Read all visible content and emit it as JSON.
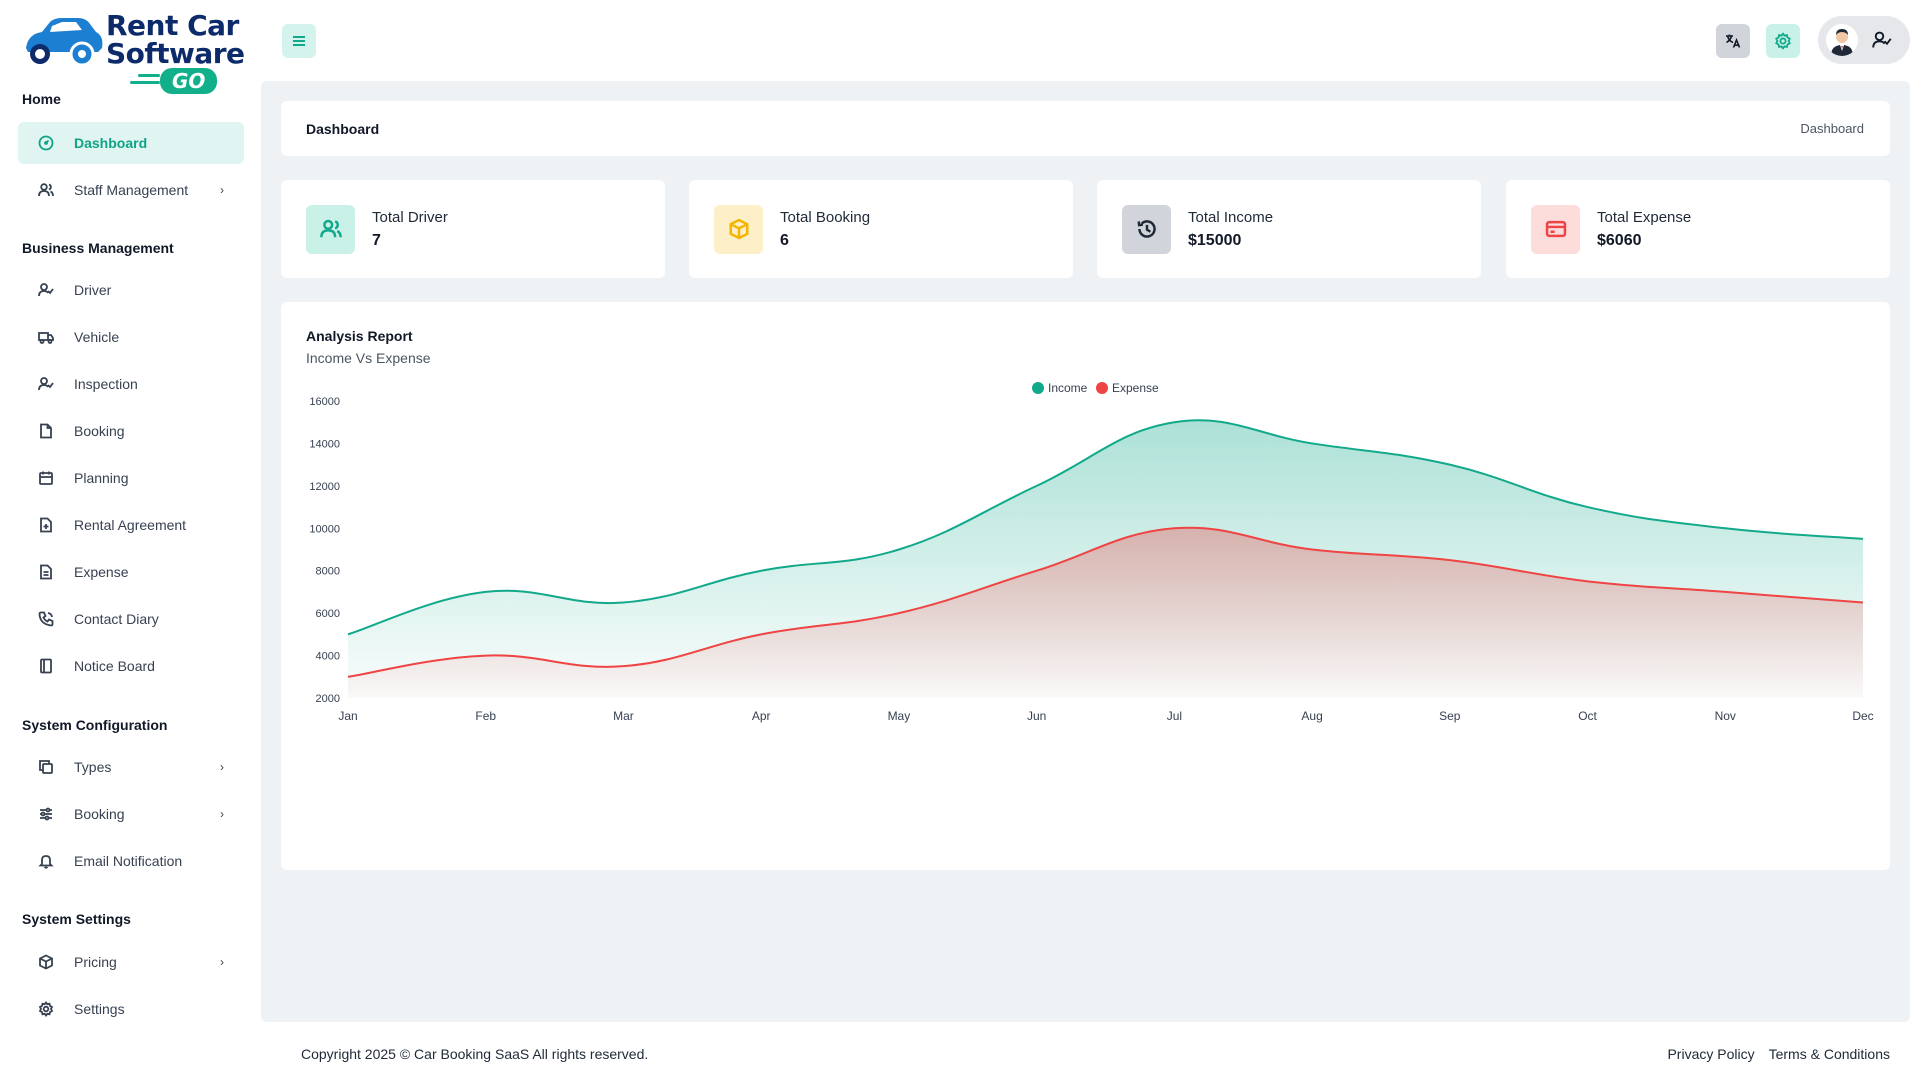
{
  "brand": {
    "line1": "Rent Car",
    "line2": "Software",
    "badge": "GO"
  },
  "sidebar": {
    "sections": [
      {
        "title": "Home"
      },
      {
        "title": "Business Management"
      },
      {
        "title": "System Configuration"
      },
      {
        "title": "System Settings"
      }
    ],
    "items": [
      {
        "label": "Dashboard",
        "icon": "gauge-icon",
        "active": true
      },
      {
        "label": "Staff Management",
        "icon": "users-icon",
        "has_children": true
      },
      {
        "label": "Driver",
        "icon": "user-check-icon"
      },
      {
        "label": "Vehicle",
        "icon": "truck-icon"
      },
      {
        "label": "Inspection",
        "icon": "user-check-icon"
      },
      {
        "label": "Booking",
        "icon": "file-icon"
      },
      {
        "label": "Planning",
        "icon": "calendar-icon"
      },
      {
        "label": "Rental Agreement",
        "icon": "file-plus-icon"
      },
      {
        "label": "Expense",
        "icon": "file-text-icon"
      },
      {
        "label": "Contact Diary",
        "icon": "phone-icon"
      },
      {
        "label": "Notice Board",
        "icon": "book-icon"
      },
      {
        "label": "Types",
        "icon": "copy-icon",
        "has_children": true
      },
      {
        "label": "Booking",
        "icon": "sliders-icon",
        "has_children": true
      },
      {
        "label": "Email Notification",
        "icon": "bell-icon"
      },
      {
        "label": "Pricing",
        "icon": "box-icon",
        "has_children": true
      },
      {
        "label": "Settings",
        "icon": "gear-icon"
      }
    ]
  },
  "topbar": {
    "menu_icon": "hamburger-icon",
    "translate_icon": "translate-icon",
    "settings_icon": "gear-icon",
    "user_icon": "user-check-icon"
  },
  "breadcrumb": {
    "title": "Dashboard",
    "path": "Dashboard"
  },
  "stats": [
    {
      "label": "Total Driver",
      "value": "7",
      "icon": "users-icon",
      "bg": "#c9f1e8",
      "fg": "#12a98b"
    },
    {
      "label": "Total Booking",
      "value": "6",
      "icon": "box-icon",
      "bg": "#fdf0c8",
      "fg": "#f4b400"
    },
    {
      "label": "Total Income",
      "value": "$15000",
      "icon": "history-icon",
      "bg": "#d1d5db",
      "fg": "#1f2937"
    },
    {
      "label": "Total Expense",
      "value": "$6060",
      "icon": "credit-card-icon",
      "bg": "#fddcdc",
      "fg": "#ef4444"
    }
  ],
  "chart": {
    "title": "Analysis Report",
    "subtitle": "Income Vs Expense"
  },
  "chart_data": {
    "type": "area",
    "categories": [
      "Jan",
      "Feb",
      "Mar",
      "Apr",
      "May",
      "Jun",
      "Jul",
      "Aug",
      "Sep",
      "Oct",
      "Nov",
      "Dec"
    ],
    "series": [
      {
        "name": "Income",
        "color": "#12a98b",
        "values": [
          5000,
          7000,
          6500,
          8000,
          9000,
          12000,
          15000,
          14000,
          13000,
          11000,
          10000,
          9500
        ]
      },
      {
        "name": "Expense",
        "color": "#ef4444",
        "values": [
          3000,
          4000,
          3500,
          5000,
          6000,
          8000,
          10000,
          9000,
          8500,
          7500,
          7000,
          6500
        ]
      }
    ],
    "y_ticks": [
      2000,
      4000,
      6000,
      8000,
      10000,
      12000,
      14000,
      16000
    ],
    "ylim": [
      2000,
      16000
    ],
    "legend": "top-center",
    "grid": false
  },
  "footer": {
    "copyright": "Copyright 2025 © Car Booking SaaS All rights reserved.",
    "privacy": "Privacy Policy",
    "terms": "Terms & Conditions"
  }
}
